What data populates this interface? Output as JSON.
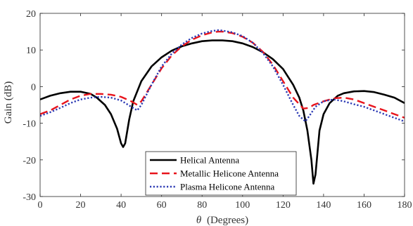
{
  "chart_data": {
    "type": "line",
    "title": "",
    "xlabel_symbol": "θ",
    "xlabel": "(Degrees)",
    "ylabel": "Gain (dB)",
    "xlim": [
      0,
      180
    ],
    "ylim": [
      -30,
      20
    ],
    "xticks": [
      0,
      20,
      40,
      60,
      80,
      100,
      120,
      140,
      160,
      180
    ],
    "yticks": [
      -30,
      -20,
      -10,
      0,
      10,
      20
    ],
    "grid": false,
    "legend_position": "bottom-center",
    "series": [
      {
        "name": "Helical Antenna",
        "color": "#000000",
        "style": "solid",
        "x": [
          0,
          5,
          10,
          15,
          20,
          25,
          28,
          32,
          35,
          38,
          40,
          41,
          42,
          44,
          46,
          50,
          55,
          60,
          65,
          70,
          75,
          80,
          85,
          90,
          95,
          100,
          105,
          110,
          115,
          120,
          125,
          128,
          130,
          132,
          134,
          135,
          136,
          138,
          140,
          143,
          147,
          150,
          155,
          160,
          165,
          170,
          175,
          180
        ],
        "y": [
          -3.5,
          -2.5,
          -1.8,
          -1.4,
          -1.4,
          -2.0,
          -3.0,
          -5.0,
          -7.5,
          -11.5,
          -15.5,
          -16.5,
          -15.5,
          -9.0,
          -4.0,
          1.5,
          5.5,
          8.0,
          9.8,
          11.0,
          11.8,
          12.4,
          12.6,
          12.6,
          12.4,
          11.8,
          10.8,
          9.4,
          7.5,
          4.8,
          0.5,
          -3.0,
          -6.5,
          -12.0,
          -20.0,
          -26.5,
          -24.0,
          -12.0,
          -7.5,
          -4.5,
          -2.5,
          -1.8,
          -1.3,
          -1.2,
          -1.5,
          -2.2,
          -3.0,
          -4.5
        ]
      },
      {
        "name": "Metallic Helicone Antenna",
        "color": "#e8141c",
        "style": "dashed",
        "x": [
          0,
          5,
          10,
          15,
          20,
          25,
          30,
          35,
          40,
          45,
          48,
          50,
          55,
          60,
          65,
          70,
          75,
          80,
          85,
          88,
          90,
          95,
          100,
          105,
          110,
          115,
          120,
          125,
          130,
          133,
          135,
          140,
          145,
          150,
          155,
          160,
          165,
          170,
          175,
          180
        ],
        "y": [
          -7.5,
          -6.5,
          -5.0,
          -3.5,
          -2.5,
          -2.0,
          -2.0,
          -2.2,
          -2.8,
          -4.0,
          -5.0,
          -4.0,
          0.5,
          5.0,
          8.5,
          11.0,
          12.8,
          14.0,
          14.8,
          15.0,
          15.0,
          14.6,
          13.6,
          12.0,
          9.5,
          6.0,
          1.5,
          -3.0,
          -6.0,
          -5.8,
          -5.0,
          -4.0,
          -3.2,
          -3.0,
          -3.5,
          -4.5,
          -5.5,
          -6.5,
          -7.5,
          -8.5
        ]
      },
      {
        "name": "Plasma Helicone Antenna",
        "color": "#2c3ab4",
        "style": "dotted",
        "x": [
          0,
          5,
          10,
          15,
          20,
          25,
          30,
          35,
          40,
          45,
          48,
          50,
          55,
          60,
          65,
          70,
          75,
          80,
          85,
          88,
          90,
          95,
          100,
          105,
          110,
          115,
          120,
          125,
          128,
          131,
          133,
          136,
          140,
          145,
          150,
          155,
          160,
          165,
          170,
          175,
          180
        ],
        "y": [
          -8.0,
          -7.0,
          -5.8,
          -4.5,
          -3.5,
          -3.0,
          -2.8,
          -3.0,
          -3.8,
          -5.5,
          -6.5,
          -5.0,
          0.5,
          5.5,
          9.0,
          11.5,
          13.3,
          14.5,
          15.2,
          15.4,
          15.3,
          14.8,
          13.8,
          12.0,
          9.2,
          5.5,
          0.5,
          -5.0,
          -8.0,
          -9.5,
          -8.0,
          -5.5,
          -4.0,
          -3.5,
          -4.0,
          -4.8,
          -5.5,
          -6.5,
          -7.5,
          -8.5,
          -9.5
        ]
      }
    ]
  }
}
